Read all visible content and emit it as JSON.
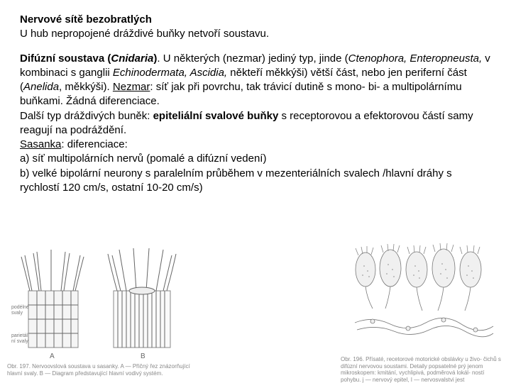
{
  "title": "Nervové sítě bezobratlých",
  "subtitle": "U hub nepropojené dráždivé buňky netvoří soustavu.",
  "paragraph_html": "<span class='bold'>Difúzní soustava (</span><span class='bold italic'>Cnidaria</span><span class='bold'>)</span>. U některých (nezmar) jediný typ, jinde (<span class='italic'>Ctenophora, Enteropneusta,</span> v kombinaci s ganglii <span class='italic'>Echinodermata, Ascidia,</span> někteří měkkýši) větší část, nebo jen periferní část (<span class='italic'>Anelida</span>, měkkýši). <span class='underline'>Nezmar</span>: síť jak při povrchu, tak trávicí dutině s mono- bi- a multipolárnímu buňkami. Žádná diferenciace.<br>Další typ dráždivých buněk: <span class='bold'>epiteliální svalové buňky</span> s receptorovou a efektorovou částí samy reagují na podráždění.<br><span class='underline'>Sasanka</span>: diferenciace:<br>a) síť multipolárních nervů (pomalé a difúzní vedení)<br>b) velké bipolární neurony s paralelním průběhem v  mezenteriálních svalech /hlavní dráhy s rychlostí 120 cm/s, ostatní 10-20 cm/s)",
  "fig_left_caption": "Obr. 197. Nervoovslová soustava u sasanky. A — Přičný řez znázorňující hlavní svaly.\nB — Diagram představující hlavní vodivý systém.",
  "fig_right_caption": "Obr. 196. Přísaté, recetorové motorické obslávky u živo-\nčichů s difúzní nervovou soustami. Detaily popsatelné prý\njenom mikroskopem: kmitání, vychlipivá, podměrová lokál-\nností pohybu. j — nervový epitel, I — nervosvalstvi jest"
}
